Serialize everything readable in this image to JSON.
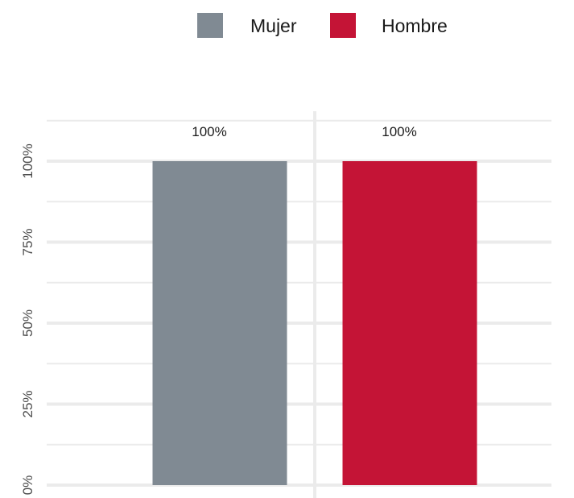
{
  "chart_data": {
    "type": "bar",
    "title": "",
    "xlabel": "",
    "ylabel": "",
    "categories": [
      "Mujer",
      "Hombre"
    ],
    "series": [
      {
        "name": "Mujer",
        "values": [
          100,
          null
        ],
        "color": "#808a93"
      },
      {
        "name": "Hombre",
        "values": [
          null,
          100
        ],
        "color": "#c41436"
      }
    ],
    "value_labels": [
      "100%",
      "100%"
    ],
    "ylim": [
      0,
      110
    ],
    "y_ticks": [
      0,
      25,
      50,
      75,
      100
    ],
    "y_tick_labels": [
      "0%",
      "25%",
      "50%",
      "75%",
      "100%"
    ],
    "y_tick_rotation": "vertical",
    "grid": true,
    "legend": {
      "position": "top",
      "entries": [
        {
          "label": "Mujer",
          "color": "#808a93"
        },
        {
          "label": "Hombre",
          "color": "#c41436"
        }
      ]
    }
  }
}
